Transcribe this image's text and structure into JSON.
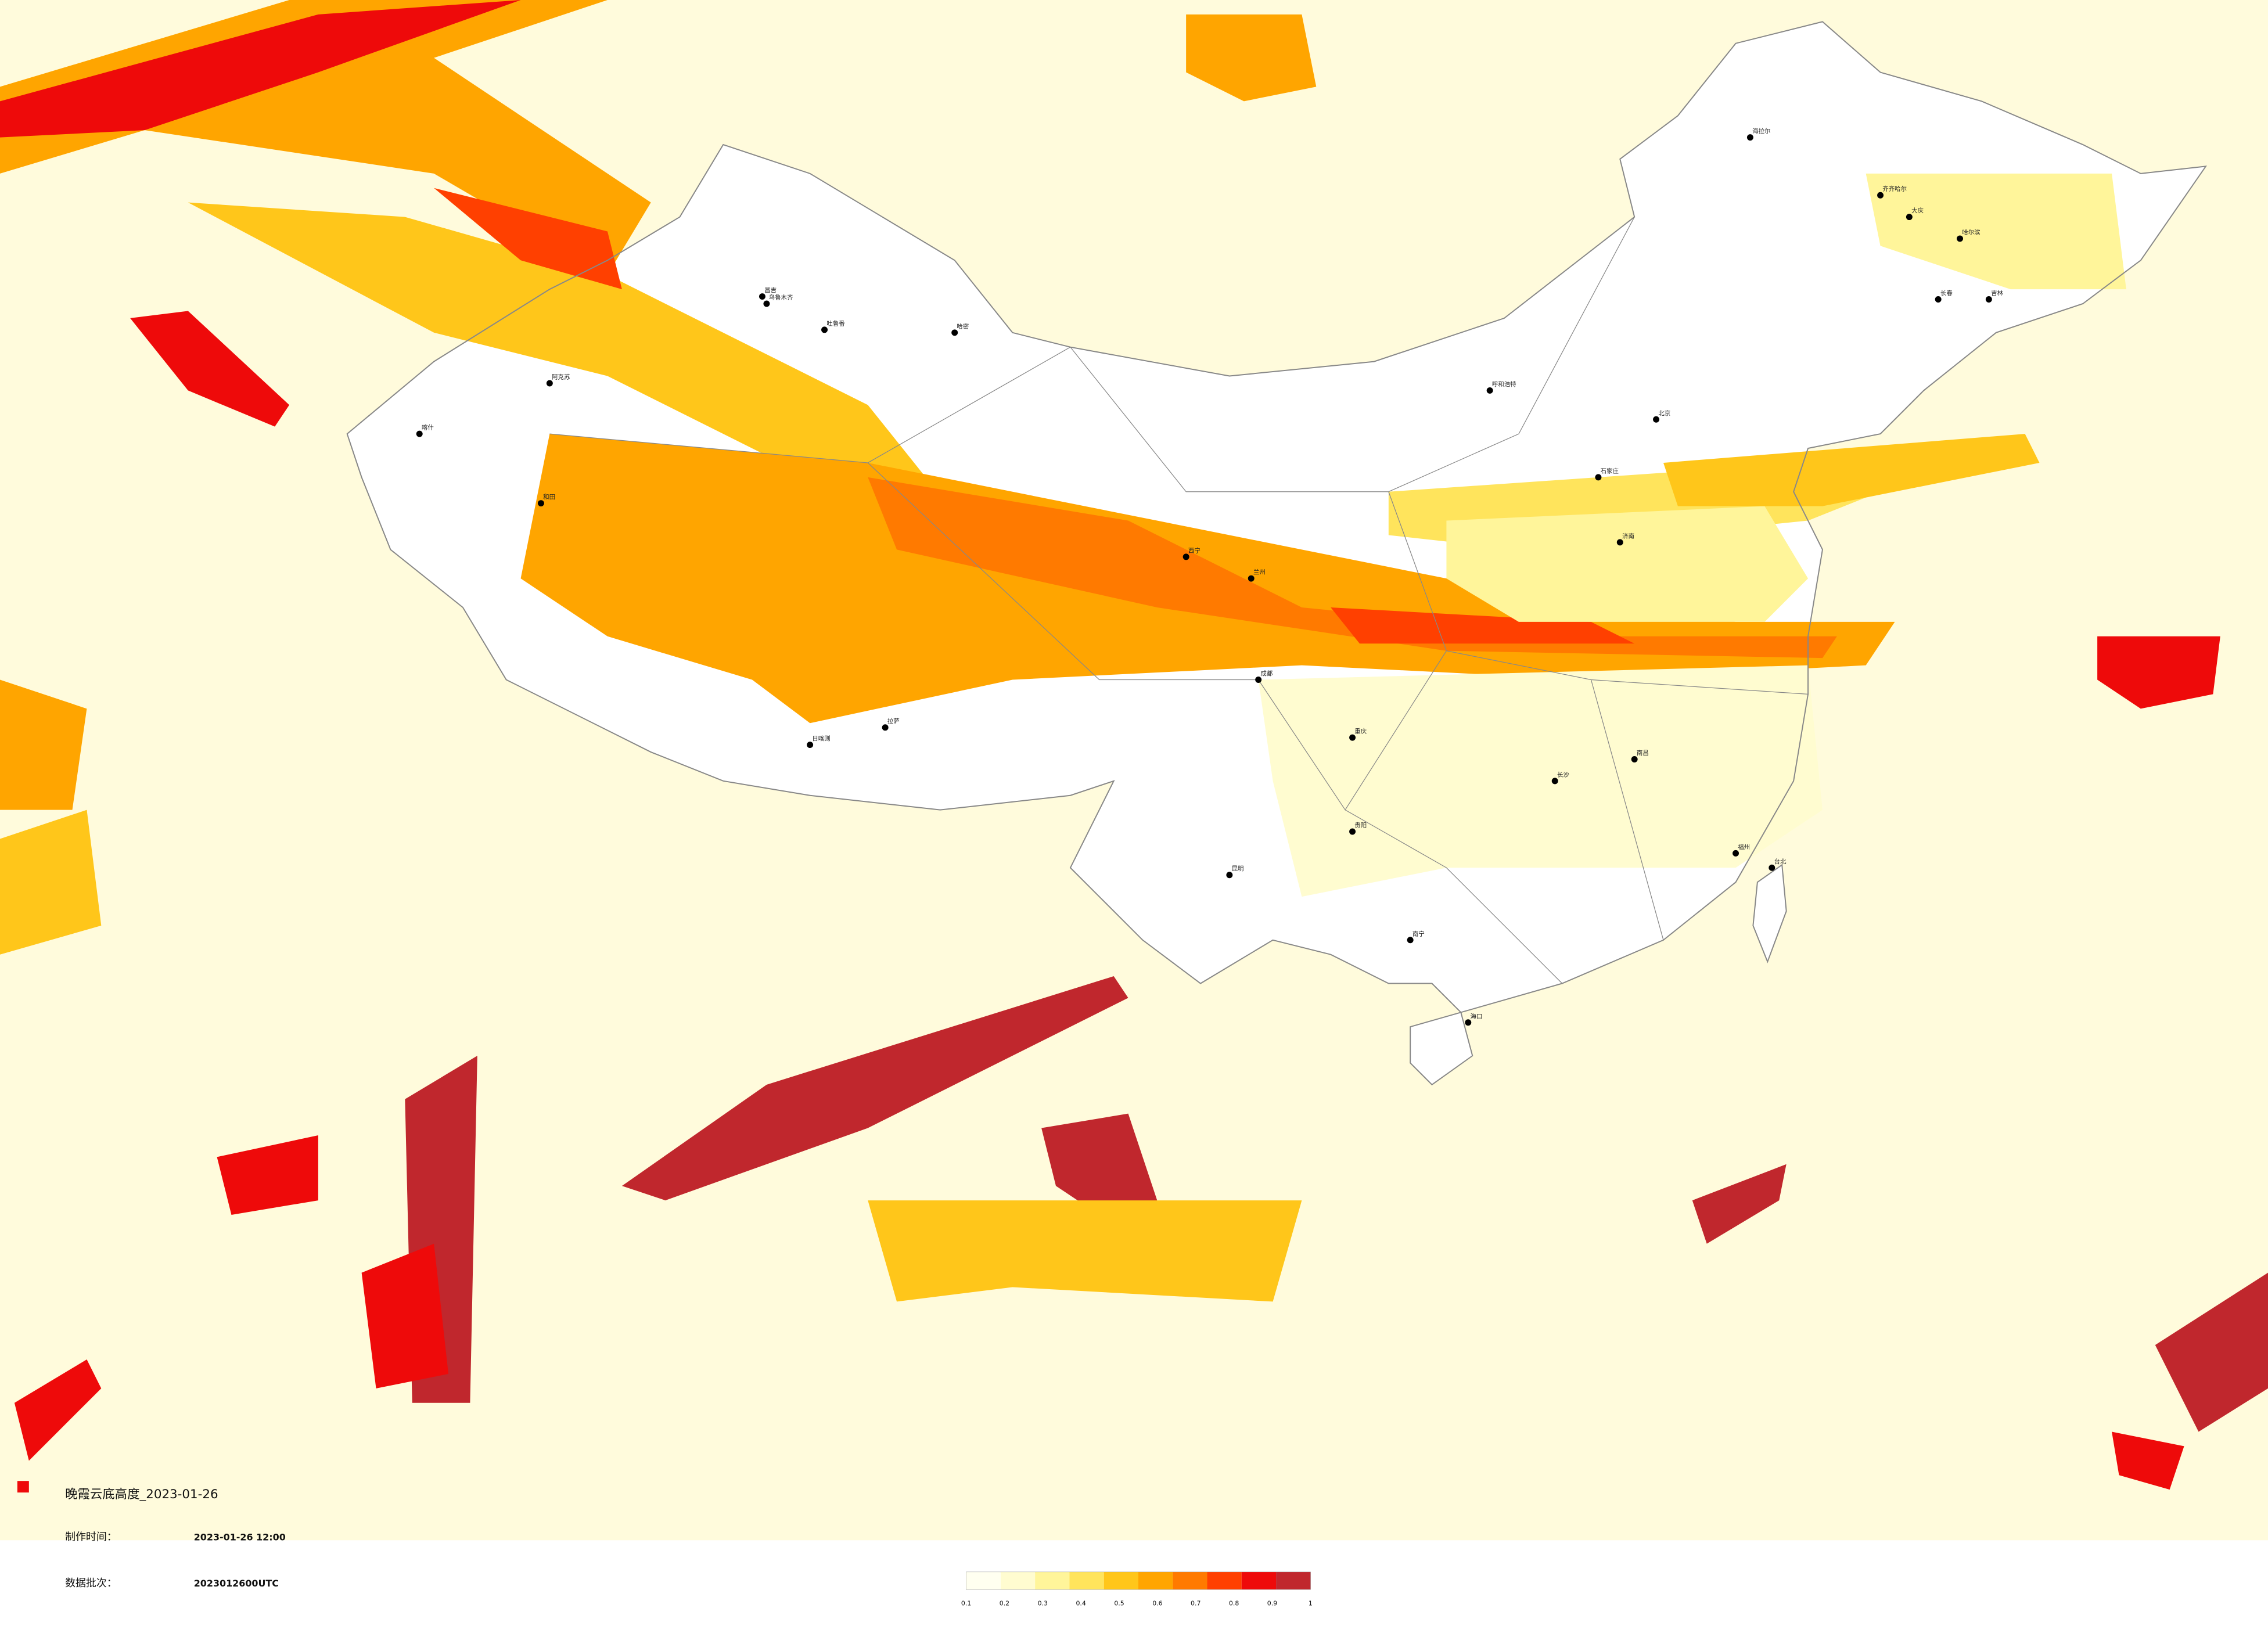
{
  "title": "晚霞云底高度_2023-01-26",
  "made_label": "制作时间：",
  "made_value": "2023-01-26 12:00",
  "batch_label": "数据批次：",
  "batch_value": "2023012600UTC",
  "cities": [
    "乌鲁木齐",
    "昌吉",
    "吐鲁番",
    "哈密",
    "阿克苏",
    "喀什",
    "和田",
    "日喀则",
    "拉萨",
    "海拉尔",
    "齐齐哈尔",
    "大庆",
    "哈尔滨",
    "长春",
    "吉林",
    "呼和浩特",
    "北京",
    "石家庄",
    "济南",
    "西宁",
    "兰州",
    "成都",
    "重庆",
    "贵阳",
    "昆明",
    "南宁",
    "长沙",
    "南昌",
    "福州",
    "海口",
    "台北"
  ],
  "legend": {
    "colors": [
      "#fffff0",
      "#fffcd0",
      "#fff59a",
      "#ffe45c",
      "#ffc61a",
      "#ffa500",
      "#ff7a00",
      "#ff4000",
      "#ee0a0a",
      "#c0272d"
    ],
    "ticks": [
      0.1,
      0.2,
      0.3,
      0.4,
      0.5,
      0.6,
      0.7,
      0.8,
      0.9,
      1
    ]
  }
}
